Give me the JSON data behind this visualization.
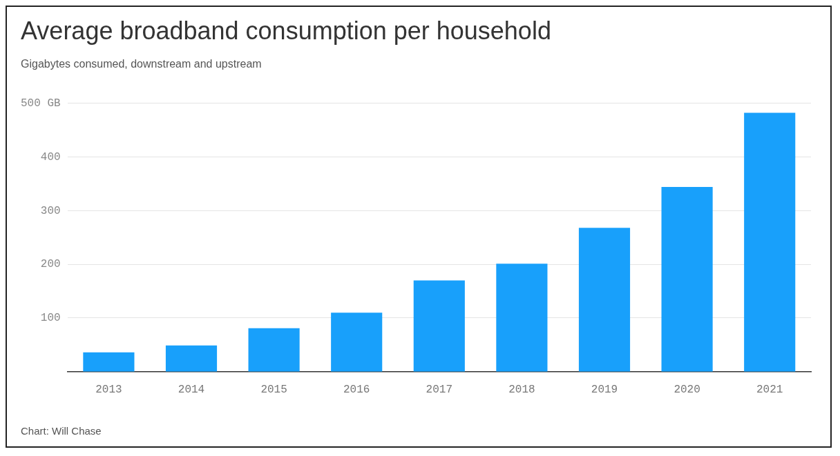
{
  "chart_data": {
    "type": "bar",
    "title": "Average broadband consumption per household",
    "subtitle": "Gigabytes consumed, downstream and upstream",
    "categories": [
      "2013",
      "2014",
      "2015",
      "2016",
      "2017",
      "2018",
      "2019",
      "2020",
      "2021"
    ],
    "values": [
      36,
      49,
      81,
      110,
      170,
      201,
      268,
      344,
      482
    ],
    "color": "#18a0fb",
    "ylim": [
      0,
      500
    ],
    "yticks": [
      100,
      200,
      300,
      400,
      {
        "value": 500,
        "label": "500 GB"
      }
    ],
    "grid": "y",
    "legend": false,
    "annotations": [
      "Chart: Will Chase"
    ]
  }
}
